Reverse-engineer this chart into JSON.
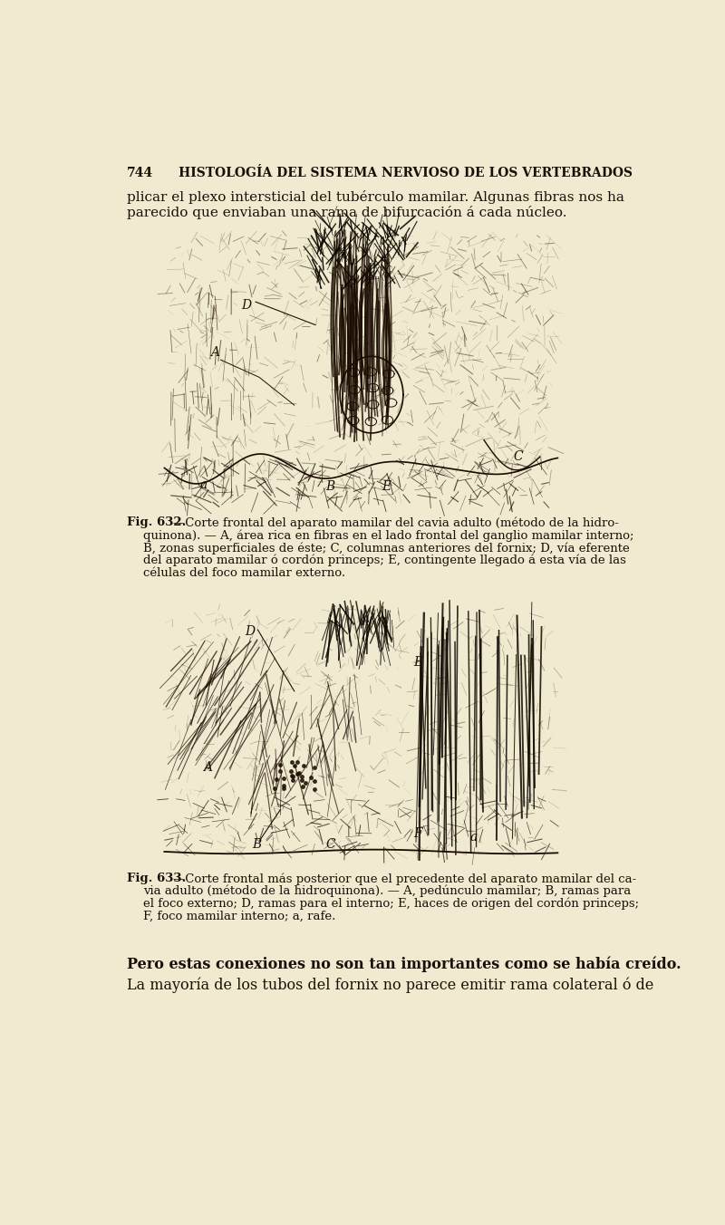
{
  "bg_color": "#f0ead0",
  "page_number": "744",
  "header": "HISTOLOGÍA DEL SISTEMA NERVIOSO DE LOS VERTEBRADOS",
  "para1_line1": "plicar el plexo intersticial del tubérculo mamilar. Algunas fibras nos ha",
  "para1_line2": "parecido que enviaban una rama de bifurcación á cada núcleo.",
  "fig632_caption_bold": "Fig. 632.",
  "fig632_caption_rest": "—Corte frontal del aparato mamilar del cavia adulto (método de la hidro-",
  "fig632_line2": "quinona). — A, área rica en fibras en el lado frontal del ganglio mamilar interno;",
  "fig632_line3": "B, zonas superficiales de éste; C, columnas anteriores del fornix; D, vía eferente",
  "fig632_line4": "del aparato mamilar ó cordón princeps; E, contingente llegado á esta vía de las",
  "fig632_line5": "células del foco mamilar externo.",
  "fig633_caption_bold": "Fig. 633.",
  "fig633_caption_rest": "—Corte frontal más posterior que el precedente del aparato mamilar del ca-",
  "fig633_line2": "via adulto (método de la hidroquinona). — A, pedúnculo mamilar; B, ramas para",
  "fig633_line3": "el foco externo; D, ramas para el interno; E, haces de origen del cordón princeps;",
  "fig633_line4": "F, foco mamilar interno; a, rafe.",
  "para_final_bold": "Pero estas conexiones no son tan importantes como se había creído.",
  "para_final": "La mayoría de los tubos del fornix no parece emitir rama colateral ó de",
  "text_color": "#1a1008"
}
